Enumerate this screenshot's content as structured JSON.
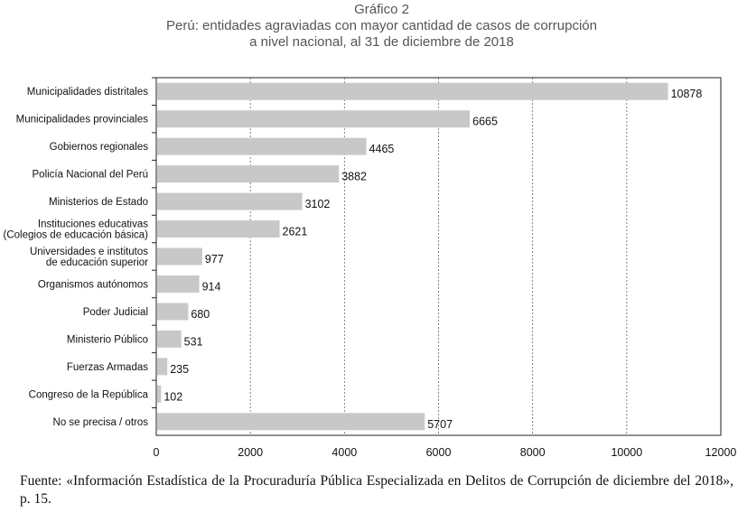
{
  "header": {
    "line1": "Gráfico 2",
    "line2": "Perú: entidades agraviadas con mayor cantidad de casos de corrupción",
    "line3": "a nivel nacional, al 31 de diciembre de 2018"
  },
  "chart_data": {
    "type": "bar",
    "orientation": "horizontal",
    "categories": [
      [
        "Municipalidades distritales"
      ],
      [
        "Municipalidades provinciales"
      ],
      [
        "Gobiernos regionales"
      ],
      [
        "Policía Nacional del Perú"
      ],
      [
        "Ministerios de Estado"
      ],
      [
        "Instituciones educativas",
        "(Colegios de educación básica)"
      ],
      [
        "Universidades e institutos",
        "de educación superior"
      ],
      [
        "Organismos autónomos"
      ],
      [
        "Poder Judicial"
      ],
      [
        "Ministerio Público"
      ],
      [
        "Fuerzas Armadas"
      ],
      [
        "Congreso de la República"
      ],
      [
        "No se precisa / otros"
      ]
    ],
    "values": [
      10878,
      6665,
      4465,
      3882,
      3102,
      2621,
      977,
      914,
      680,
      531,
      235,
      102,
      5707
    ],
    "xlim": [
      0,
      12000
    ],
    "xticks": [
      0,
      2000,
      4000,
      6000,
      8000,
      10000,
      12000
    ],
    "grid": "vertical dashed",
    "bar_color": "#c8c8c8",
    "title": "",
    "xlabel": "",
    "ylabel": ""
  },
  "source": "Fuente: «Información Estadística de la Procuraduría Pública Especializada en Delitos de Corrupción de diciembre del 2018», p. 15."
}
